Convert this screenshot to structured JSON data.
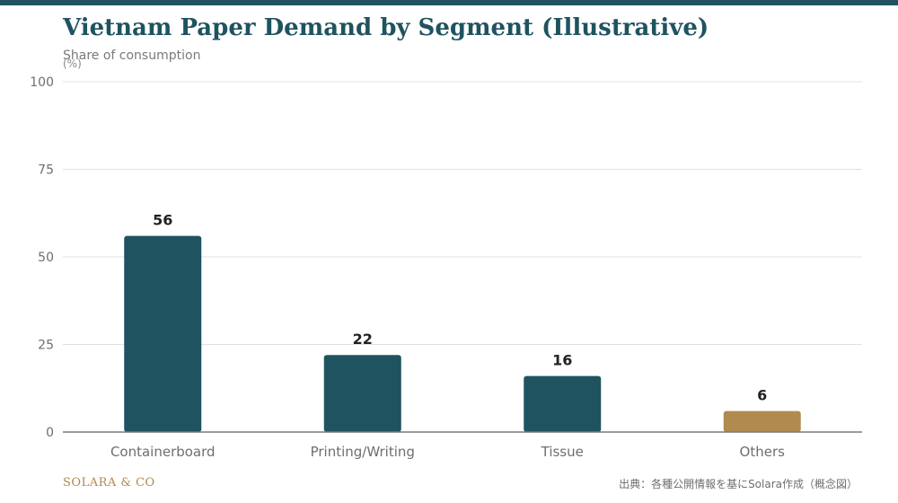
{
  "header": {
    "title": "Vietnam Paper Demand by Segment (Illustrative)",
    "subtitle": "Share of consumption",
    "unit": "(%)"
  },
  "footer": {
    "brand": "SOLARA & CO",
    "source": "出典：各種公開情報を基にSolara作成（概念図）"
  },
  "colors": {
    "primary": "#1f5360",
    "accent": "#b08a4e",
    "grid": "#e0e0e0",
    "axis": "#7a7a7a",
    "tick_text": "#6e6e6e",
    "value_text": "#222222"
  },
  "chart_data": {
    "type": "bar",
    "categories": [
      "Containerboard",
      "Printing/Writing",
      "Tissue",
      "Others"
    ],
    "values": [
      56,
      22,
      16,
      6
    ],
    "highlight": [
      false,
      false,
      false,
      true
    ],
    "ylim": [
      0,
      100
    ],
    "yticks": [
      0,
      25,
      50,
      75,
      100
    ],
    "xlabel": "",
    "ylabel": "",
    "grid": true,
    "data_labels": true
  }
}
